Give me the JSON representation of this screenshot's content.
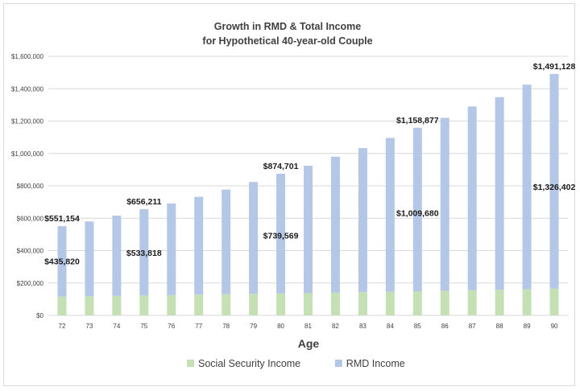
{
  "chart_data": {
    "type": "bar",
    "stacked": true,
    "title": [
      "Growth in RMD & Total Income",
      "for Hypothetical 40-year-old Couple"
    ],
    "xlabel": "Age",
    "ylabel": "",
    "ylim": [
      0,
      1600000
    ],
    "yticks": [
      0,
      200000,
      400000,
      600000,
      800000,
      1000000,
      1200000,
      1400000,
      1600000
    ],
    "ytick_labels": [
      "$0",
      "$200,000",
      "$400,000",
      "$600,000",
      "$800,000",
      "$1,000,000",
      "$1,200,000",
      "$1,400,000",
      "$1,600,000"
    ],
    "grid": true,
    "legend_position": "bottom",
    "categories": [
      "72",
      "73",
      "74",
      "75",
      "76",
      "77",
      "78",
      "79",
      "80",
      "81",
      "82",
      "83",
      "84",
      "85",
      "86",
      "87",
      "88",
      "89",
      "90"
    ],
    "series": [
      {
        "name": "Social Security Income",
        "color": "#c5e0b4",
        "values": [
          115334,
          118000,
          120000,
          122393,
          125000,
          128000,
          131000,
          134000,
          135132,
          137000,
          140000,
          143000,
          146000,
          149197,
          152000,
          155000,
          158000,
          161000,
          164726
        ]
      },
      {
        "name": "RMD Income",
        "color": "#b4c7e7",
        "values": [
          435820,
          462000,
          496000,
          533818,
          566000,
          604000,
          646000,
          690000,
          739569,
          787000,
          840000,
          890000,
          950000,
          1009680,
          1068000,
          1135000,
          1190000,
          1264000,
          1326402
        ]
      }
    ],
    "annotations": [
      {
        "category": "72",
        "anchor": "total",
        "text": "$551,154"
      },
      {
        "category": "72",
        "anchor": "rmd",
        "text": "$435,820"
      },
      {
        "category": "75",
        "anchor": "total",
        "text": "$656,211"
      },
      {
        "category": "75",
        "anchor": "rmd",
        "text": "$533,818"
      },
      {
        "category": "80",
        "anchor": "total",
        "text": "$874,701"
      },
      {
        "category": "80",
        "anchor": "rmd",
        "text": "$739,569"
      },
      {
        "category": "85",
        "anchor": "total",
        "text": "$1,158,877"
      },
      {
        "category": "85",
        "anchor": "rmd",
        "text": "$1,009,680"
      },
      {
        "category": "90",
        "anchor": "total",
        "text": "$1,491,128"
      },
      {
        "category": "90",
        "anchor": "rmd",
        "text": "$1,326,402"
      }
    ]
  }
}
